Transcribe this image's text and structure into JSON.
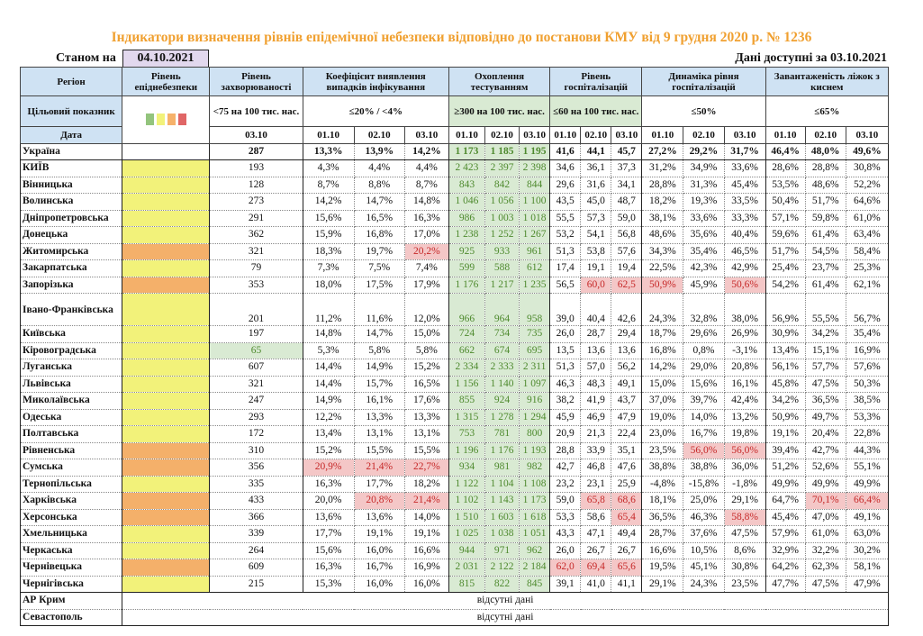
{
  "title": "Індикатори визначення рівнів епідемічної небезпеки відповідно до постанови КМУ від 9 грудня 2020 р. № 1236",
  "as_of_label": "Станом на",
  "as_of_date": "04.10.2021",
  "data_available": "Дані доступні за  03.10.2021",
  "colors": {
    "green": "#93c47d",
    "yellow": "#f2f27a",
    "orange": "#f4b06a",
    "red": "#e06666",
    "highlight_bad": "#f4c7c7",
    "highlight_good": "#d9ead3"
  },
  "header": {
    "region": "Регіон",
    "target": "Цільовий показник",
    "date": "Дата",
    "level": "Рівень епіднебезпеки",
    "incidence": "Рівень захворюваності",
    "incidence_target": "<75 на 100 тис. нас.",
    "detection": "Коефіцієнт виявлення випадків інфікування",
    "detection_target": "≤20% / <4%",
    "testing": "Охоплення тестуванням",
    "testing_target": "≥300 на 100 тис. нас.",
    "hosp": "Рівень госпіталізацій",
    "hosp_target": "≤60 на 100 тис. нас.",
    "dynamics": "Динаміка рівня госпіталізацій",
    "dynamics_target": "≤50%",
    "beds": "Завантаженість ліжок з киснем",
    "beds_target": "≤65%",
    "incidence_date": "03.10",
    "dates": [
      "01.10",
      "02.10",
      "03.10"
    ]
  },
  "rows": [
    {
      "region": "Україна",
      "level": "",
      "v": [
        "287",
        "13,3%",
        "13,9%",
        "14,2%",
        "1 173",
        "1 185",
        "1 195",
        "41,6",
        "44,1",
        "45,7",
        "27,2%",
        "29,2%",
        "31,7%",
        "46,4%",
        "48,0%",
        "49,6%"
      ],
      "hl": [],
      "good": []
    },
    {
      "region": "КИЇВ",
      "level": "yellow",
      "v": [
        "193",
        "4,3%",
        "4,4%",
        "4,4%",
        "2 423",
        "2 397",
        "2 398",
        "34,6",
        "36,1",
        "37,3",
        "31,2%",
        "34,9%",
        "33,6%",
        "28,6%",
        "28,8%",
        "30,8%"
      ],
      "hl": [],
      "good": []
    },
    {
      "region": "Вінницька",
      "level": "yellow",
      "v": [
        "128",
        "8,7%",
        "8,8%",
        "8,7%",
        "843",
        "842",
        "844",
        "29,6",
        "31,6",
        "34,1",
        "28,8%",
        "31,3%",
        "45,4%",
        "53,5%",
        "48,6%",
        "52,2%"
      ],
      "hl": [],
      "good": []
    },
    {
      "region": "Волинська",
      "level": "yellow",
      "v": [
        "273",
        "14,2%",
        "14,7%",
        "14,8%",
        "1 046",
        "1 056",
        "1 100",
        "43,5",
        "45,0",
        "48,7",
        "18,2%",
        "19,3%",
        "33,5%",
        "50,4%",
        "51,7%",
        "64,6%"
      ],
      "hl": [],
      "good": []
    },
    {
      "region": "Дніпропетровська",
      "level": "yellow",
      "v": [
        "291",
        "15,6%",
        "16,5%",
        "16,3%",
        "986",
        "1 003",
        "1 018",
        "55,5",
        "57,3",
        "59,0",
        "38,1%",
        "33,6%",
        "33,3%",
        "57,1%",
        "59,8%",
        "61,0%"
      ],
      "hl": [],
      "good": []
    },
    {
      "region": "Донецька",
      "level": "yellow",
      "v": [
        "362",
        "15,9%",
        "16,8%",
        "17,0%",
        "1 238",
        "1 252",
        "1 267",
        "53,2",
        "54,1",
        "56,8",
        "48,6%",
        "35,6%",
        "40,4%",
        "59,6%",
        "61,4%",
        "63,4%"
      ],
      "hl": [],
      "good": []
    },
    {
      "region": "Житомирська",
      "level": "orange",
      "v": [
        "321",
        "18,3%",
        "19,7%",
        "20,2%",
        "925",
        "933",
        "961",
        "51,3",
        "53,8",
        "57,6",
        "34,3%",
        "35,4%",
        "46,5%",
        "51,7%",
        "54,5%",
        "58,4%"
      ],
      "hl": [
        3
      ],
      "good": []
    },
    {
      "region": "Закарпатська",
      "level": "yellow",
      "v": [
        "79",
        "7,3%",
        "7,5%",
        "7,4%",
        "599",
        "588",
        "612",
        "17,4",
        "19,1",
        "19,4",
        "22,5%",
        "42,3%",
        "42,9%",
        "25,4%",
        "23,7%",
        "25,3%"
      ],
      "hl": [],
      "good": []
    },
    {
      "region": "Запорізька",
      "level": "orange",
      "v": [
        "353",
        "18,0%",
        "17,5%",
        "17,9%",
        "1 176",
        "1 217",
        "1 235",
        "56,5",
        "60,0",
        "62,5",
        "50,9%",
        "45,9%",
        "50,6%",
        "54,2%",
        "61,4%",
        "62,1%"
      ],
      "hl": [
        8,
        9,
        10,
        12
      ],
      "good": []
    },
    {
      "region": "Івано-Франківська",
      "level": "yellow",
      "v": [
        "201",
        "11,2%",
        "11,6%",
        "12,0%",
        "966",
        "964",
        "958",
        "39,0",
        "40,4",
        "42,6",
        "24,3%",
        "32,8%",
        "38,0%",
        "56,9%",
        "55,5%",
        "56,7%"
      ],
      "hl": [],
      "good": [],
      "tall": true
    },
    {
      "region": "Київська",
      "level": "yellow",
      "v": [
        "197",
        "14,8%",
        "14,7%",
        "15,0%",
        "724",
        "734",
        "735",
        "26,0",
        "28,7",
        "29,4",
        "18,7%",
        "29,6%",
        "26,9%",
        "30,9%",
        "34,2%",
        "35,4%"
      ],
      "hl": [],
      "good": []
    },
    {
      "region": "Кіровоградська",
      "level": "yellow",
      "v": [
        "65",
        "5,3%",
        "5,8%",
        "5,8%",
        "662",
        "674",
        "695",
        "13,5",
        "13,6",
        "13,6",
        "16,8%",
        "0,8%",
        "-3,1%",
        "13,4%",
        "15,1%",
        "16,9%"
      ],
      "hl": [],
      "good": [
        0
      ]
    },
    {
      "region": "Луганська",
      "level": "yellow",
      "v": [
        "607",
        "14,4%",
        "14,9%",
        "15,2%",
        "2 334",
        "2 333",
        "2 311",
        "51,3",
        "57,0",
        "56,2",
        "14,2%",
        "29,0%",
        "20,8%",
        "56,1%",
        "57,7%",
        "57,6%"
      ],
      "hl": [],
      "good": []
    },
    {
      "region": "Львівська",
      "level": "yellow",
      "v": [
        "321",
        "14,4%",
        "15,7%",
        "16,5%",
        "1 156",
        "1 140",
        "1 097",
        "46,3",
        "48,3",
        "49,1",
        "15,0%",
        "15,6%",
        "16,1%",
        "45,8%",
        "47,5%",
        "50,3%"
      ],
      "hl": [],
      "good": []
    },
    {
      "region": "Миколаївська",
      "level": "yellow",
      "v": [
        "247",
        "14,9%",
        "16,1%",
        "17,6%",
        "855",
        "924",
        "916",
        "38,2",
        "41,9",
        "43,7",
        "37,0%",
        "39,7%",
        "42,4%",
        "34,2%",
        "36,5%",
        "38,5%"
      ],
      "hl": [],
      "good": []
    },
    {
      "region": "Одеська",
      "level": "yellow",
      "v": [
        "293",
        "12,2%",
        "13,3%",
        "13,3%",
        "1 315",
        "1 278",
        "1 294",
        "45,9",
        "46,9",
        "47,9",
        "19,0%",
        "14,0%",
        "13,2%",
        "50,9%",
        "49,7%",
        "53,3%"
      ],
      "hl": [],
      "good": []
    },
    {
      "region": "Полтавська",
      "level": "yellow",
      "v": [
        "172",
        "13,4%",
        "13,1%",
        "13,1%",
        "753",
        "781",
        "800",
        "20,9",
        "21,3",
        "22,4",
        "23,0%",
        "16,7%",
        "19,8%",
        "19,1%",
        "20,4%",
        "22,8%"
      ],
      "hl": [],
      "good": []
    },
    {
      "region": "Рівненська",
      "level": "orange",
      "v": [
        "310",
        "15,2%",
        "15,5%",
        "15,5%",
        "1 196",
        "1 176",
        "1 193",
        "28,8",
        "33,9",
        "35,1",
        "23,5%",
        "56,0%",
        "56,0%",
        "39,4%",
        "42,7%",
        "44,3%"
      ],
      "hl": [
        11,
        12
      ],
      "good": []
    },
    {
      "region": "Сумська",
      "level": "orange",
      "v": [
        "356",
        "20,9%",
        "21,4%",
        "22,7%",
        "934",
        "981",
        "982",
        "42,7",
        "46,8",
        "47,6",
        "38,8%",
        "38,8%",
        "36,0%",
        "51,2%",
        "52,6%",
        "55,1%"
      ],
      "hl": [
        1,
        2,
        3
      ],
      "good": []
    },
    {
      "region": "Тернопільська",
      "level": "yellow",
      "v": [
        "335",
        "16,3%",
        "17,7%",
        "18,2%",
        "1 122",
        "1 104",
        "1 108",
        "23,2",
        "23,1",
        "25,9",
        "-4,8%",
        "-15,8%",
        "-1,8%",
        "49,9%",
        "49,9%",
        "49,9%"
      ],
      "hl": [],
      "good": []
    },
    {
      "region": "Харківська",
      "level": "orange",
      "v": [
        "433",
        "20,0%",
        "20,8%",
        "21,4%",
        "1 102",
        "1 143",
        "1 173",
        "59,0",
        "65,8",
        "68,6",
        "18,1%",
        "25,0%",
        "29,1%",
        "64,7%",
        "70,1%",
        "66,4%"
      ],
      "hl": [
        2,
        3,
        8,
        9,
        14,
        15
      ],
      "good": []
    },
    {
      "region": "Херсонська",
      "level": "orange",
      "v": [
        "366",
        "13,6%",
        "13,6%",
        "14,0%",
        "1 510",
        "1 603",
        "1 618",
        "53,3",
        "58,6",
        "65,4",
        "36,5%",
        "46,3%",
        "58,8%",
        "45,4%",
        "47,0%",
        "49,1%"
      ],
      "hl": [
        9,
        12
      ],
      "good": []
    },
    {
      "region": "Хмельницька",
      "level": "yellow",
      "v": [
        "339",
        "17,7%",
        "19,1%",
        "19,1%",
        "1 025",
        "1 038",
        "1 051",
        "43,3",
        "47,1",
        "49,4",
        "28,7%",
        "37,6%",
        "47,5%",
        "57,9%",
        "61,0%",
        "63,0%"
      ],
      "hl": [],
      "good": []
    },
    {
      "region": "Черкаська",
      "level": "yellow",
      "v": [
        "264",
        "15,6%",
        "16,0%",
        "16,6%",
        "944",
        "971",
        "962",
        "26,0",
        "26,7",
        "26,7",
        "16,6%",
        "10,5%",
        "8,6%",
        "32,9%",
        "32,2%",
        "30,2%"
      ],
      "hl": [],
      "good": []
    },
    {
      "region": "Чернівецька",
      "level": "orange",
      "v": [
        "609",
        "16,3%",
        "16,7%",
        "16,9%",
        "2 031",
        "2 122",
        "2 184",
        "62,0",
        "69,4",
        "65,6",
        "19,5%",
        "45,1%",
        "30,8%",
        "64,2%",
        "62,3%",
        "58,1%"
      ],
      "hl": [
        7,
        8,
        9
      ],
      "good": []
    },
    {
      "region": "Чернігівська",
      "level": "yellow",
      "v": [
        "215",
        "15,3%",
        "16,0%",
        "16,0%",
        "815",
        "822",
        "845",
        "39,1",
        "41,0",
        "41,1",
        "29,1%",
        "24,3%",
        "23,5%",
        "47,7%",
        "47,5%",
        "47,9%"
      ],
      "hl": [],
      "good": []
    }
  ],
  "missing_rows": [
    {
      "region": "АР Крим",
      "text": "відсутні дані"
    },
    {
      "region": "Севастополь",
      "text": "відсутні дані"
    }
  ]
}
